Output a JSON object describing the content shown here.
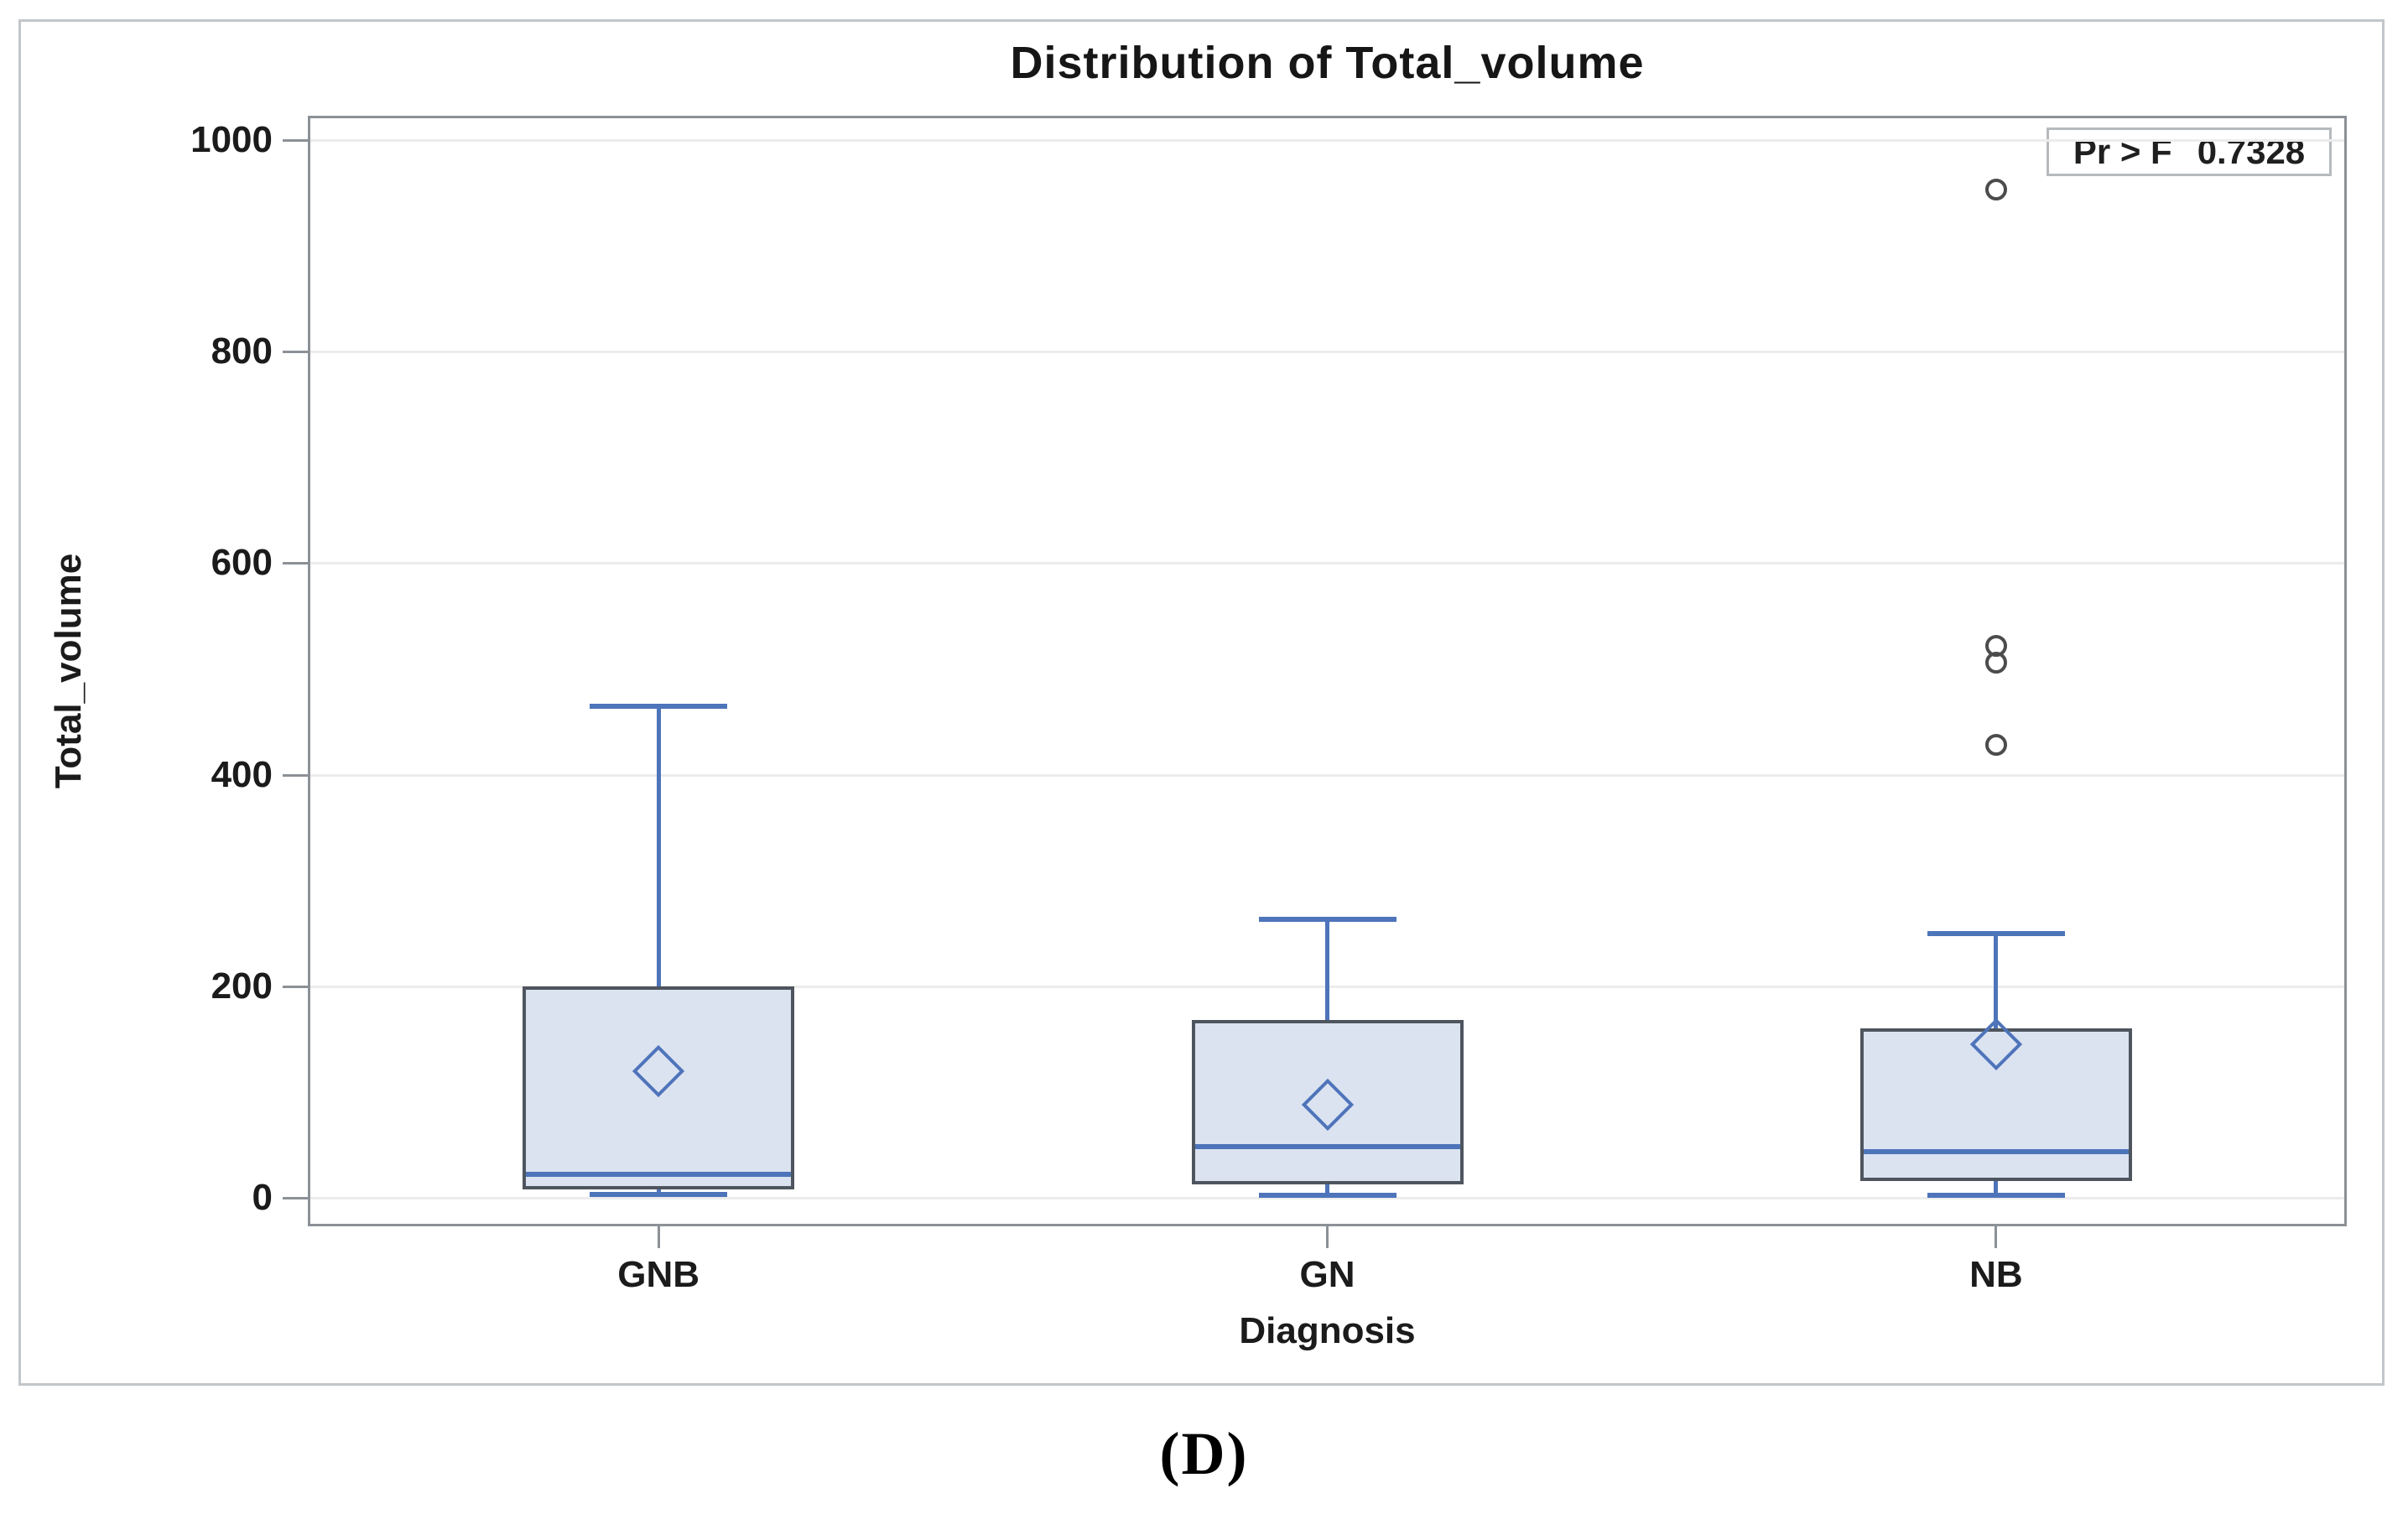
{
  "figure": {
    "caption": "(D)"
  },
  "chart_data": {
    "type": "boxplot",
    "title": "Distribution of Total_volume",
    "xlabel": "Diagnosis",
    "ylabel": "Total_volume",
    "ylim": [
      0,
      1000
    ],
    "yticks": [
      0,
      200,
      400,
      600,
      800,
      1000
    ],
    "grid": "horizontal",
    "legend": null,
    "inset": {
      "label": "Pr > F",
      "value": "0.7328"
    },
    "categories": [
      "GNB",
      "GN",
      "NB"
    ],
    "series": [
      {
        "category": "GNB",
        "whisker_low": 3,
        "q1": 8,
        "median": 22,
        "q3": 200,
        "whisker_high": 465,
        "mean": 120,
        "outliers": []
      },
      {
        "category": "GN",
        "whisker_low": 2,
        "q1": 13,
        "median": 48,
        "q3": 168,
        "whisker_high": 263,
        "mean": 88,
        "outliers": []
      },
      {
        "category": "NB",
        "whisker_low": 2,
        "q1": 16,
        "median": 44,
        "q3": 160,
        "whisker_high": 250,
        "mean": 145,
        "outliers": [
          428,
          506,
          522,
          953
        ]
      }
    ]
  },
  "colors": {
    "box_fill": "#dbe3f1",
    "box_border": "#4e555e",
    "blue_line": "#4e74ba",
    "outlier_stroke": "#4c4c4c",
    "wall_border": "#8c9197",
    "gridline": "#ececec",
    "text": "#1b1b1b"
  }
}
